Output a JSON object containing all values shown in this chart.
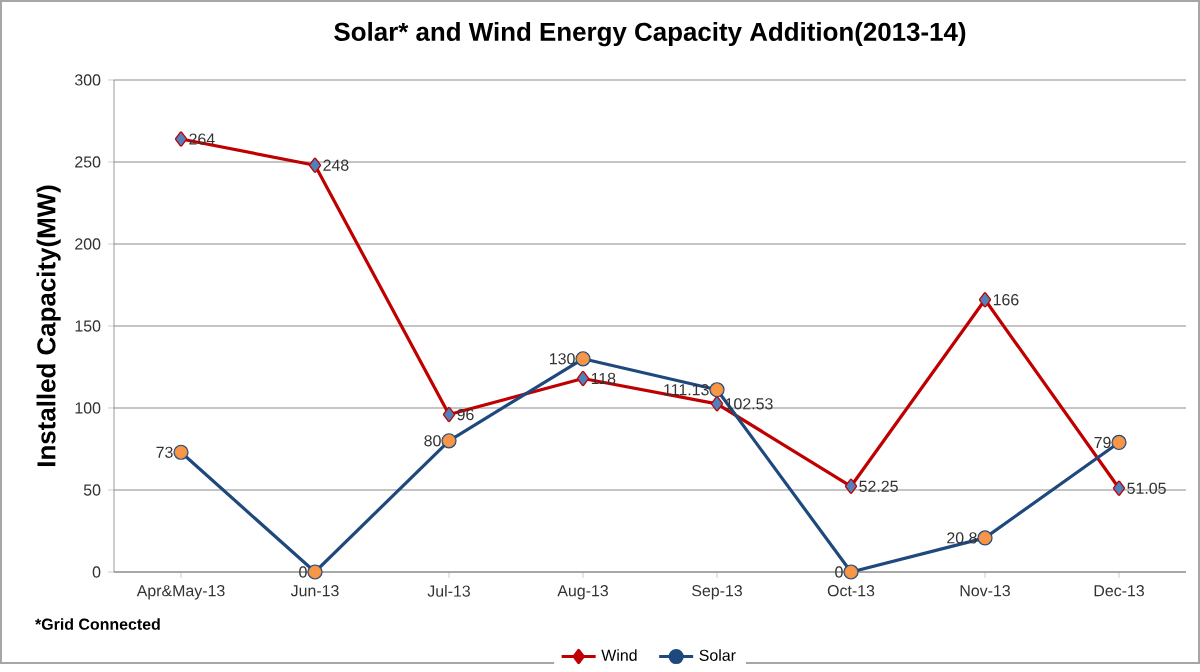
{
  "chart_data": {
    "type": "line",
    "title": "Solar* and Wind Energy Capacity Addition(2013-14)",
    "ylabel": "Installed Capacity(MW)",
    "categories": [
      "Apr&May-13",
      "Jun-13",
      "Jul-13",
      "Aug-13",
      "Sep-13",
      "Oct-13",
      "Nov-13",
      "Dec-13"
    ],
    "series": [
      {
        "name": "Wind",
        "color": "#c00000",
        "marker": "diamond",
        "colors": [
          "#4f81bd",
          "#4f81bd",
          "#4f81bd",
          "#4f81bd",
          "#4f81bd",
          "#4f81bd",
          "#4f81bd",
          "#4f81bd"
        ],
        "values": [
          264,
          248,
          96,
          118,
          102.53,
          52.25,
          166,
          51.05
        ]
      },
      {
        "name": "Solar",
        "color": "#1f497d",
        "marker": "circle",
        "colors": [
          "#f79646",
          "#f79646",
          "#f79646",
          "#f79646",
          "#f79646",
          "#f79646",
          "#f79646",
          "#f79646"
        ],
        "values": [
          73,
          0,
          80,
          130,
          111.13,
          0,
          20.8,
          79
        ]
      }
    ],
    "ylim": [
      0,
      300
    ],
    "yticks": [
      0,
      50,
      100,
      150,
      200,
      250,
      300
    ],
    "grid": "y",
    "legend": "bottom",
    "data_labels": true,
    "line_style": "solid",
    "annotations": [
      "*Grid Connected"
    ]
  }
}
